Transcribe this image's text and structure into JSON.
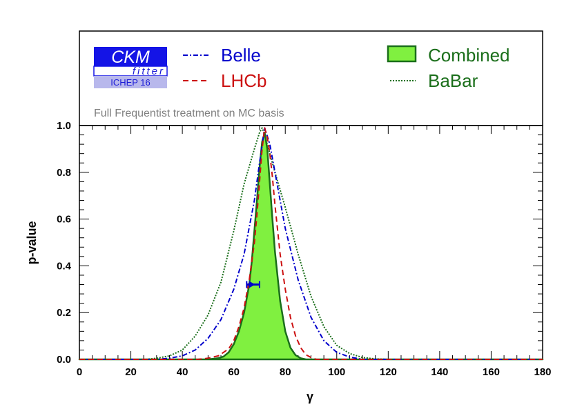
{
  "chart_data": {
    "type": "line",
    "xlabel": "γ",
    "ylabel": "p-value",
    "xlim": [
      0,
      180
    ],
    "ylim": [
      0,
      1.0
    ],
    "xticks": [
      "0",
      "20",
      "40",
      "60",
      "80",
      "100",
      "120",
      "140",
      "160",
      "180"
    ],
    "yticks": [
      "0.0",
      "0.2",
      "0.4",
      "0.6",
      "0.8",
      "1.0"
    ],
    "annotation": "Full Frequentist treatment on MC basis",
    "logo": {
      "main": "CKM",
      "sub": "fitter",
      "tag": "ICHEP 16"
    },
    "legend_placement": "top",
    "series": [
      {
        "name": "Combined",
        "style": "filled",
        "color": "#1a6e1a",
        "fill": "#80f040",
        "x": [
          0,
          50,
          54,
          56,
          58,
          60,
          62,
          64,
          66,
          67,
          68,
          69,
          70,
          71,
          72,
          73,
          74,
          75,
          76,
          78,
          80,
          82,
          84,
          86,
          88,
          180
        ],
        "y": [
          0,
          0.0,
          0.005,
          0.012,
          0.03,
          0.065,
          0.12,
          0.2,
          0.32,
          0.42,
          0.55,
          0.68,
          0.82,
          0.93,
          0.97,
          0.9,
          0.75,
          0.6,
          0.46,
          0.25,
          0.12,
          0.05,
          0.018,
          0.005,
          0.0,
          0
        ]
      },
      {
        "name": "LHCb",
        "style": "dashed",
        "color": "#cc1111",
        "x": [
          0,
          46,
          50,
          54,
          58,
          60,
          62,
          64,
          66,
          68,
          69,
          70,
          71,
          72,
          73,
          74,
          75,
          76,
          78,
          80,
          82,
          84,
          86,
          88,
          90,
          92,
          180
        ],
        "y": [
          0,
          0.0,
          0.005,
          0.015,
          0.045,
          0.08,
          0.14,
          0.22,
          0.34,
          0.5,
          0.62,
          0.76,
          0.9,
          0.99,
          0.95,
          0.88,
          0.78,
          0.66,
          0.45,
          0.3,
          0.18,
          0.1,
          0.05,
          0.02,
          0.008,
          0.0,
          0
        ]
      },
      {
        "name": "Belle",
        "style": "dashdot",
        "color": "#0000cc",
        "x": [
          0,
          30,
          35,
          40,
          45,
          50,
          55,
          60,
          64,
          68,
          70,
          72,
          74,
          76,
          78,
          80,
          85,
          90,
          95,
          100,
          105,
          110,
          180
        ],
        "y": [
          0,
          0.0,
          0.005,
          0.015,
          0.04,
          0.09,
          0.17,
          0.3,
          0.45,
          0.68,
          0.84,
          0.99,
          0.92,
          0.8,
          0.68,
          0.56,
          0.34,
          0.18,
          0.08,
          0.03,
          0.01,
          0.0,
          0
        ]
      },
      {
        "name": "BaBar",
        "style": "dotted",
        "color": "#1a6e1a",
        "x": [
          0,
          26,
          30,
          35,
          40,
          45,
          50,
          55,
          60,
          64,
          68,
          70,
          71,
          72,
          74,
          76,
          80,
          85,
          90,
          95,
          100,
          105,
          110,
          115,
          120,
          180
        ],
        "y": [
          0,
          0.0,
          0.005,
          0.015,
          0.04,
          0.1,
          0.19,
          0.33,
          0.55,
          0.75,
          0.9,
          0.97,
          0.99,
          0.96,
          0.88,
          0.8,
          0.65,
          0.45,
          0.27,
          0.14,
          0.06,
          0.025,
          0.008,
          0.002,
          0.0,
          0
        ]
      }
    ],
    "errorbar": {
      "color": "#0000cc",
      "x": 67,
      "xmin": 65,
      "xmax": 70,
      "y": 0.32
    }
  }
}
